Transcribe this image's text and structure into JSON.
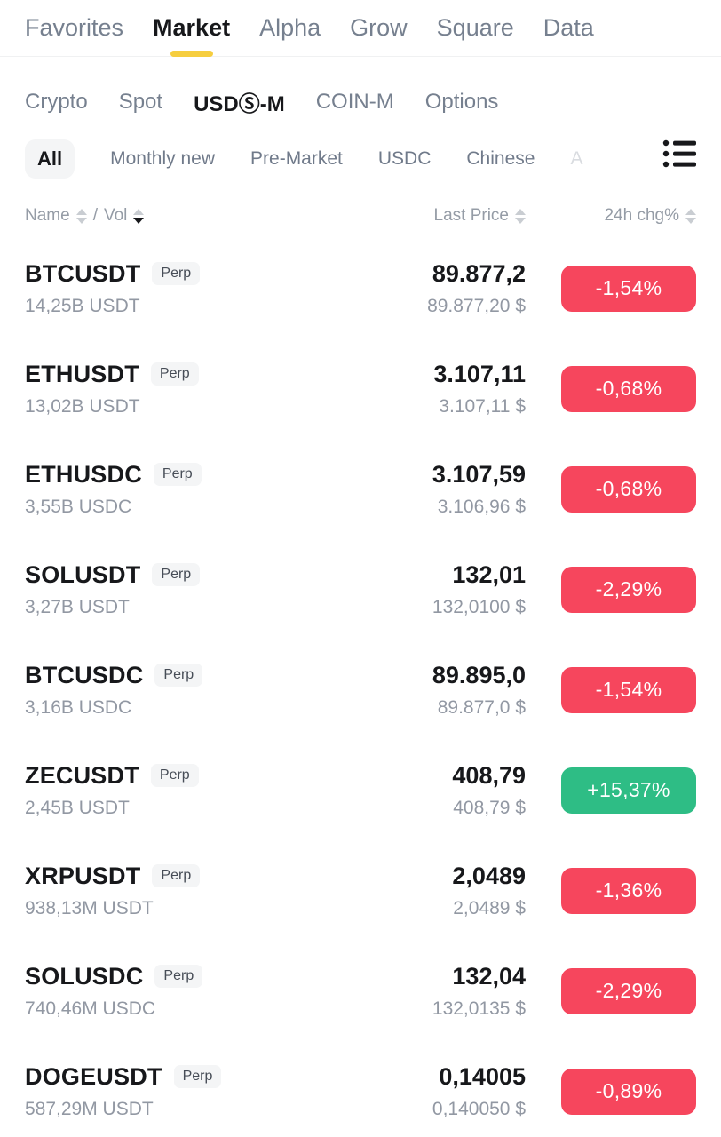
{
  "nav": {
    "items": [
      {
        "label": "Favorites",
        "active": false
      },
      {
        "label": "Market",
        "active": true
      },
      {
        "label": "Alpha",
        "active": false
      },
      {
        "label": "Grow",
        "active": false
      },
      {
        "label": "Square",
        "active": false
      },
      {
        "label": "Data",
        "active": false
      }
    ]
  },
  "subnav": {
    "items": [
      {
        "label": "Crypto",
        "active": false
      },
      {
        "label": "Spot",
        "active": false
      },
      {
        "label": "USDⓈ-M",
        "active": true
      },
      {
        "label": "COIN-M",
        "active": false
      },
      {
        "label": "Options",
        "active": false
      }
    ]
  },
  "filters": {
    "chips": [
      {
        "label": "All",
        "active": true,
        "faded": false
      },
      {
        "label": "Monthly new",
        "active": false,
        "faded": false
      },
      {
        "label": "Pre-Market",
        "active": false,
        "faded": false
      },
      {
        "label": "USDC",
        "active": false,
        "faded": false
      },
      {
        "label": "Chinese",
        "active": false,
        "faded": false
      },
      {
        "label": "A",
        "active": false,
        "faded": true
      }
    ],
    "list_icon": "list-icon"
  },
  "table": {
    "headers": {
      "name": "Name",
      "separator": "/",
      "vol": "Vol",
      "last_price": "Last Price",
      "change": "24h chg%"
    },
    "sort": {
      "field": "Vol",
      "direction": "desc"
    }
  },
  "rows": [
    {
      "symbol": "BTCUSDT",
      "contract": "Perp",
      "volume": "14,25B USDT",
      "last_price": "89.877,2",
      "last_price_usd": "89.877,20 $",
      "change": "-1,54%",
      "direction": "down"
    },
    {
      "symbol": "ETHUSDT",
      "contract": "Perp",
      "volume": "13,02B USDT",
      "last_price": "3.107,11",
      "last_price_usd": "3.107,11 $",
      "change": "-0,68%",
      "direction": "down"
    },
    {
      "symbol": "ETHUSDC",
      "contract": "Perp",
      "volume": "3,55B USDC",
      "last_price": "3.107,59",
      "last_price_usd": "3.106,96 $",
      "change": "-0,68%",
      "direction": "down"
    },
    {
      "symbol": "SOLUSDT",
      "contract": "Perp",
      "volume": "3,27B USDT",
      "last_price": "132,01",
      "last_price_usd": "132,0100 $",
      "change": "-2,29%",
      "direction": "down"
    },
    {
      "symbol": "BTCUSDC",
      "contract": "Perp",
      "volume": "3,16B USDC",
      "last_price": "89.895,0",
      "last_price_usd": "89.877,0 $",
      "change": "-1,54%",
      "direction": "down"
    },
    {
      "symbol": "ZECUSDT",
      "contract": "Perp",
      "volume": "2,45B USDT",
      "last_price": "408,79",
      "last_price_usd": "408,79 $",
      "change": "+15,37%",
      "direction": "up"
    },
    {
      "symbol": "XRPUSDT",
      "contract": "Perp",
      "volume": "938,13M USDT",
      "last_price": "2,0489",
      "last_price_usd": "2,0489 $",
      "change": "-1,36%",
      "direction": "down"
    },
    {
      "symbol": "SOLUSDC",
      "contract": "Perp",
      "volume": "740,46M USDC",
      "last_price": "132,04",
      "last_price_usd": "132,0135 $",
      "change": "-2,29%",
      "direction": "down"
    },
    {
      "symbol": "DOGEUSDT",
      "contract": "Perp",
      "volume": "587,29M USDT",
      "last_price": "0,14005",
      "last_price_usd": "0,140050 $",
      "change": "-0,89%",
      "direction": "down"
    }
  ],
  "colors": {
    "up": "#2EBD85",
    "down": "#F6465D",
    "accent": "#F6CE3F"
  }
}
